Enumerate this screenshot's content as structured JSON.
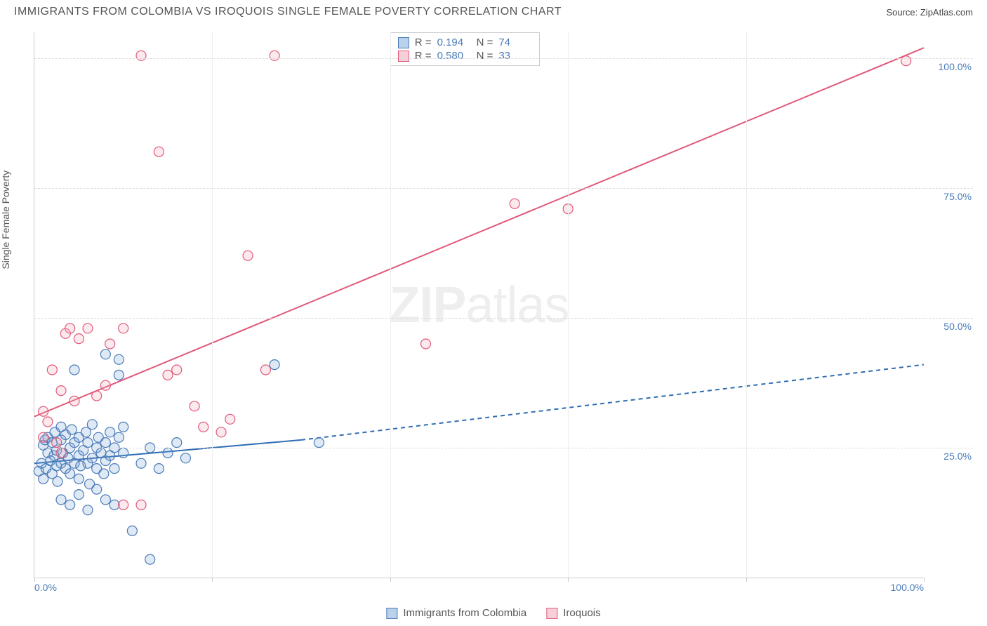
{
  "title": "IMMIGRANTS FROM COLOMBIA VS IROQUOIS SINGLE FEMALE POVERTY CORRELATION CHART",
  "source": "Source: ZipAtlas.com",
  "y_axis_label": "Single Female Poverty",
  "watermark": {
    "bold": "ZIP",
    "rest": "atlas"
  },
  "chart": {
    "type": "scatter",
    "xlim": [
      0,
      100
    ],
    "ylim": [
      0,
      105
    ],
    "x_ticks": [
      0,
      20,
      40,
      60,
      80,
      100
    ],
    "x_tick_labels": {
      "0": "0.0%",
      "100": "100.0%"
    },
    "y_ticks": [
      25,
      50,
      75,
      100
    ],
    "y_tick_labels": {
      "25": "25.0%",
      "50": "50.0%",
      "75": "75.0%",
      "100": "100.0%"
    },
    "background_color": "#ffffff",
    "grid_color": "#dddddd",
    "axis_color": "#cccccc",
    "marker_radius": 7,
    "series": [
      {
        "name": "Immigrants from Colombia",
        "color_fill": "#7aa8d8",
        "color_stroke": "#4a7bb8",
        "R": "0.194",
        "N": "74",
        "trend": {
          "x1": 0,
          "y1": 22,
          "x2": 30,
          "y2": 26.5,
          "x2_ext": 100,
          "y2_ext": 41,
          "color": "#2f6db3",
          "width": 2,
          "dash_ext": "6 5"
        },
        "points": [
          [
            0.5,
            20.5
          ],
          [
            0.8,
            22
          ],
          [
            1,
            25.5
          ],
          [
            1,
            19
          ],
          [
            1.2,
            26.5
          ],
          [
            1.3,
            21
          ],
          [
            1.5,
            24
          ],
          [
            1.5,
            27
          ],
          [
            1.8,
            22.5
          ],
          [
            2,
            20
          ],
          [
            2,
            26
          ],
          [
            2.2,
            23.5
          ],
          [
            2.3,
            28
          ],
          [
            2.5,
            21.5
          ],
          [
            2.5,
            24.5
          ],
          [
            2.6,
            18.5
          ],
          [
            3,
            22
          ],
          [
            3,
            26.5
          ],
          [
            3,
            29
          ],
          [
            3.2,
            24
          ],
          [
            3.5,
            21
          ],
          [
            3.5,
            27.5
          ],
          [
            3.8,
            23
          ],
          [
            4,
            25
          ],
          [
            4,
            20
          ],
          [
            4.2,
            28.5
          ],
          [
            4.5,
            22
          ],
          [
            4.5,
            26
          ],
          [
            5,
            23.5
          ],
          [
            5,
            19
          ],
          [
            5,
            27
          ],
          [
            5.2,
            21.5
          ],
          [
            5.5,
            24.5
          ],
          [
            5.8,
            28
          ],
          [
            6,
            22
          ],
          [
            6,
            26
          ],
          [
            6.2,
            18
          ],
          [
            6.5,
            23
          ],
          [
            6.5,
            29.5
          ],
          [
            7,
            25
          ],
          [
            7,
            21
          ],
          [
            7.2,
            27
          ],
          [
            7.5,
            24
          ],
          [
            7.8,
            20
          ],
          [
            8,
            26
          ],
          [
            8,
            22.5
          ],
          [
            8.5,
            28
          ],
          [
            8.5,
            23.5
          ],
          [
            9,
            25
          ],
          [
            9,
            21
          ],
          [
            9.5,
            27
          ],
          [
            10,
            24
          ],
          [
            10,
            29
          ],
          [
            3,
            15
          ],
          [
            4,
            14
          ],
          [
            5,
            16
          ],
          [
            6,
            13
          ],
          [
            7,
            17
          ],
          [
            8,
            15
          ],
          [
            9,
            14
          ],
          [
            11,
            9
          ],
          [
            13,
            3.5
          ],
          [
            4.5,
            40
          ],
          [
            8,
            43
          ],
          [
            9.5,
            39
          ],
          [
            9.5,
            42
          ],
          [
            27,
            41
          ],
          [
            32,
            26
          ],
          [
            12,
            22
          ],
          [
            13,
            25
          ],
          [
            14,
            21
          ],
          [
            15,
            24
          ],
          [
            16,
            26
          ],
          [
            17,
            23
          ]
        ]
      },
      {
        "name": "Iroquois",
        "color_fill": "#f2a8b8",
        "color_stroke": "#e05a7a",
        "R": "0.580",
        "N": "33",
        "trend": {
          "x1": 0,
          "y1": 31,
          "x2": 100,
          "y2": 102,
          "color": "#e05a7a",
          "width": 2
        },
        "points": [
          [
            1,
            27
          ],
          [
            1,
            32
          ],
          [
            1.5,
            30
          ],
          [
            2,
            40
          ],
          [
            2.5,
            26
          ],
          [
            3,
            36
          ],
          [
            3.5,
            47
          ],
          [
            4,
            48
          ],
          [
            4.5,
            34
          ],
          [
            5,
            46
          ],
          [
            6,
            48
          ],
          [
            7,
            35
          ],
          [
            8,
            37
          ],
          [
            8.5,
            45
          ],
          [
            10,
            48
          ],
          [
            10,
            14
          ],
          [
            12,
            14
          ],
          [
            15,
            39
          ],
          [
            16,
            40
          ],
          [
            14,
            82
          ],
          [
            19,
            29
          ],
          [
            21,
            28
          ],
          [
            22,
            30.5
          ],
          [
            24,
            62
          ],
          [
            26,
            40
          ],
          [
            12,
            100.5
          ],
          [
            27,
            100.5
          ],
          [
            18,
            33
          ],
          [
            44,
            45
          ],
          [
            54,
            72
          ],
          [
            60,
            71
          ],
          [
            98,
            99.5
          ],
          [
            3,
            24
          ]
        ]
      }
    ]
  },
  "stats_box": {
    "rows": [
      {
        "swatch_fill": "#b9d1eb",
        "swatch_stroke": "#4a7bb8",
        "R": "0.194",
        "N": "74"
      },
      {
        "swatch_fill": "#f7cfd8",
        "swatch_stroke": "#e05a7a",
        "R": "0.580",
        "N": "33"
      }
    ],
    "labels": {
      "R": "R =",
      "N": "N ="
    }
  },
  "legend": [
    {
      "swatch_fill": "#b9d1eb",
      "swatch_stroke": "#4a7bb8",
      "label": "Immigrants from Colombia"
    },
    {
      "swatch_fill": "#f7cfd8",
      "swatch_stroke": "#e05a7a",
      "label": "Iroquois"
    }
  ]
}
